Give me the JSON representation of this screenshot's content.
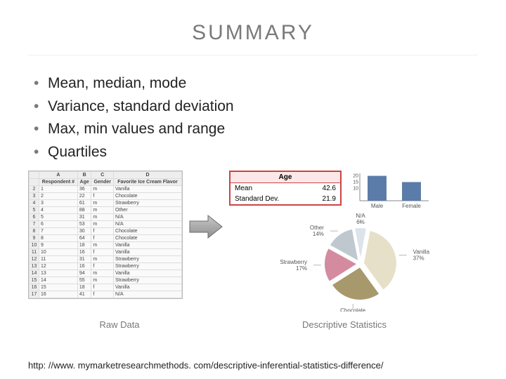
{
  "title": "SUMMARY",
  "bullets": [
    "Mean, median, mode",
    "Variance, standard deviation",
    "Max, min values and range",
    "Quartiles"
  ],
  "spreadsheet": {
    "cols": [
      "",
      "A",
      "B",
      "C",
      "D"
    ],
    "headers": [
      "Respondent #",
      "Age",
      "Gender",
      "Favorite Ice Cream Flavor"
    ],
    "rows": [
      [
        "1",
        "36",
        "m",
        "Vanilla"
      ],
      [
        "2",
        "22",
        "f",
        "Chocolate"
      ],
      [
        "3",
        "61",
        "m",
        "Strawberry"
      ],
      [
        "4",
        "88",
        "m",
        "Other"
      ],
      [
        "5",
        "31",
        "m",
        "N/A"
      ],
      [
        "6",
        "53",
        "m",
        "N/A"
      ],
      [
        "7",
        "30",
        "f",
        "Chocolate"
      ],
      [
        "8",
        "64",
        "f",
        "Chocolate"
      ],
      [
        "9",
        "18",
        "m",
        "Vanilla"
      ],
      [
        "10",
        "16",
        "f",
        "Vanilla"
      ],
      [
        "11",
        "31",
        "m",
        "Strawberry"
      ],
      [
        "12",
        "16",
        "f",
        "Strawberry"
      ],
      [
        "13",
        "94",
        "m",
        "Vanilla"
      ],
      [
        "14",
        "55",
        "m",
        "Strawberry"
      ],
      [
        "15",
        "18",
        "f",
        "Vanilla"
      ],
      [
        "16",
        "41",
        "f",
        "N/A"
      ]
    ]
  },
  "stats_box": {
    "header": "Age",
    "mean_label": "Mean",
    "mean_val": "42.6",
    "sd_label": "Standard Dev.",
    "sd_val": "21.9"
  },
  "bar_chart": {
    "type": "bar",
    "categories": [
      "Male",
      "Female"
    ],
    "values": [
      20,
      15
    ],
    "ytick_labels": [
      "10",
      "15",
      "20"
    ],
    "ymax": 22,
    "bar_color": "#5b7ca8",
    "bg": "#ffffff",
    "axis_color": "#888",
    "label_fontsize": 8,
    "tick_fontsize": 7
  },
  "pie_chart": {
    "type": "pie",
    "slices": [
      {
        "label": "N/A",
        "pct": 6,
        "color": "#dce3ea",
        "label_pos": "top"
      },
      {
        "label": "Vanilla",
        "pct": 37,
        "color": "#e7e0c8",
        "label_pos": "right"
      },
      {
        "label": "Chocolate",
        "pct": 26,
        "color": "#a8996c",
        "label_pos": "bottom"
      },
      {
        "label": "Strawberry",
        "pct": 17,
        "color": "#d58b9f",
        "label_pos": "left"
      },
      {
        "label": "Other",
        "pct": 14,
        "color": "#bfc8cf",
        "label_pos": "left-top"
      }
    ],
    "label_fontsize": 8,
    "stroke": "#ffffff",
    "stroke_width": 2
  },
  "captions": {
    "left": "Raw Data",
    "right": "Descriptive Statistics"
  },
  "arrow": {
    "fill": "#a8a8a8",
    "stroke": "#6b6b6b"
  },
  "source": "http: //www. mymarketresearchmethods. com/descriptive-inferential-statistics-difference/"
}
